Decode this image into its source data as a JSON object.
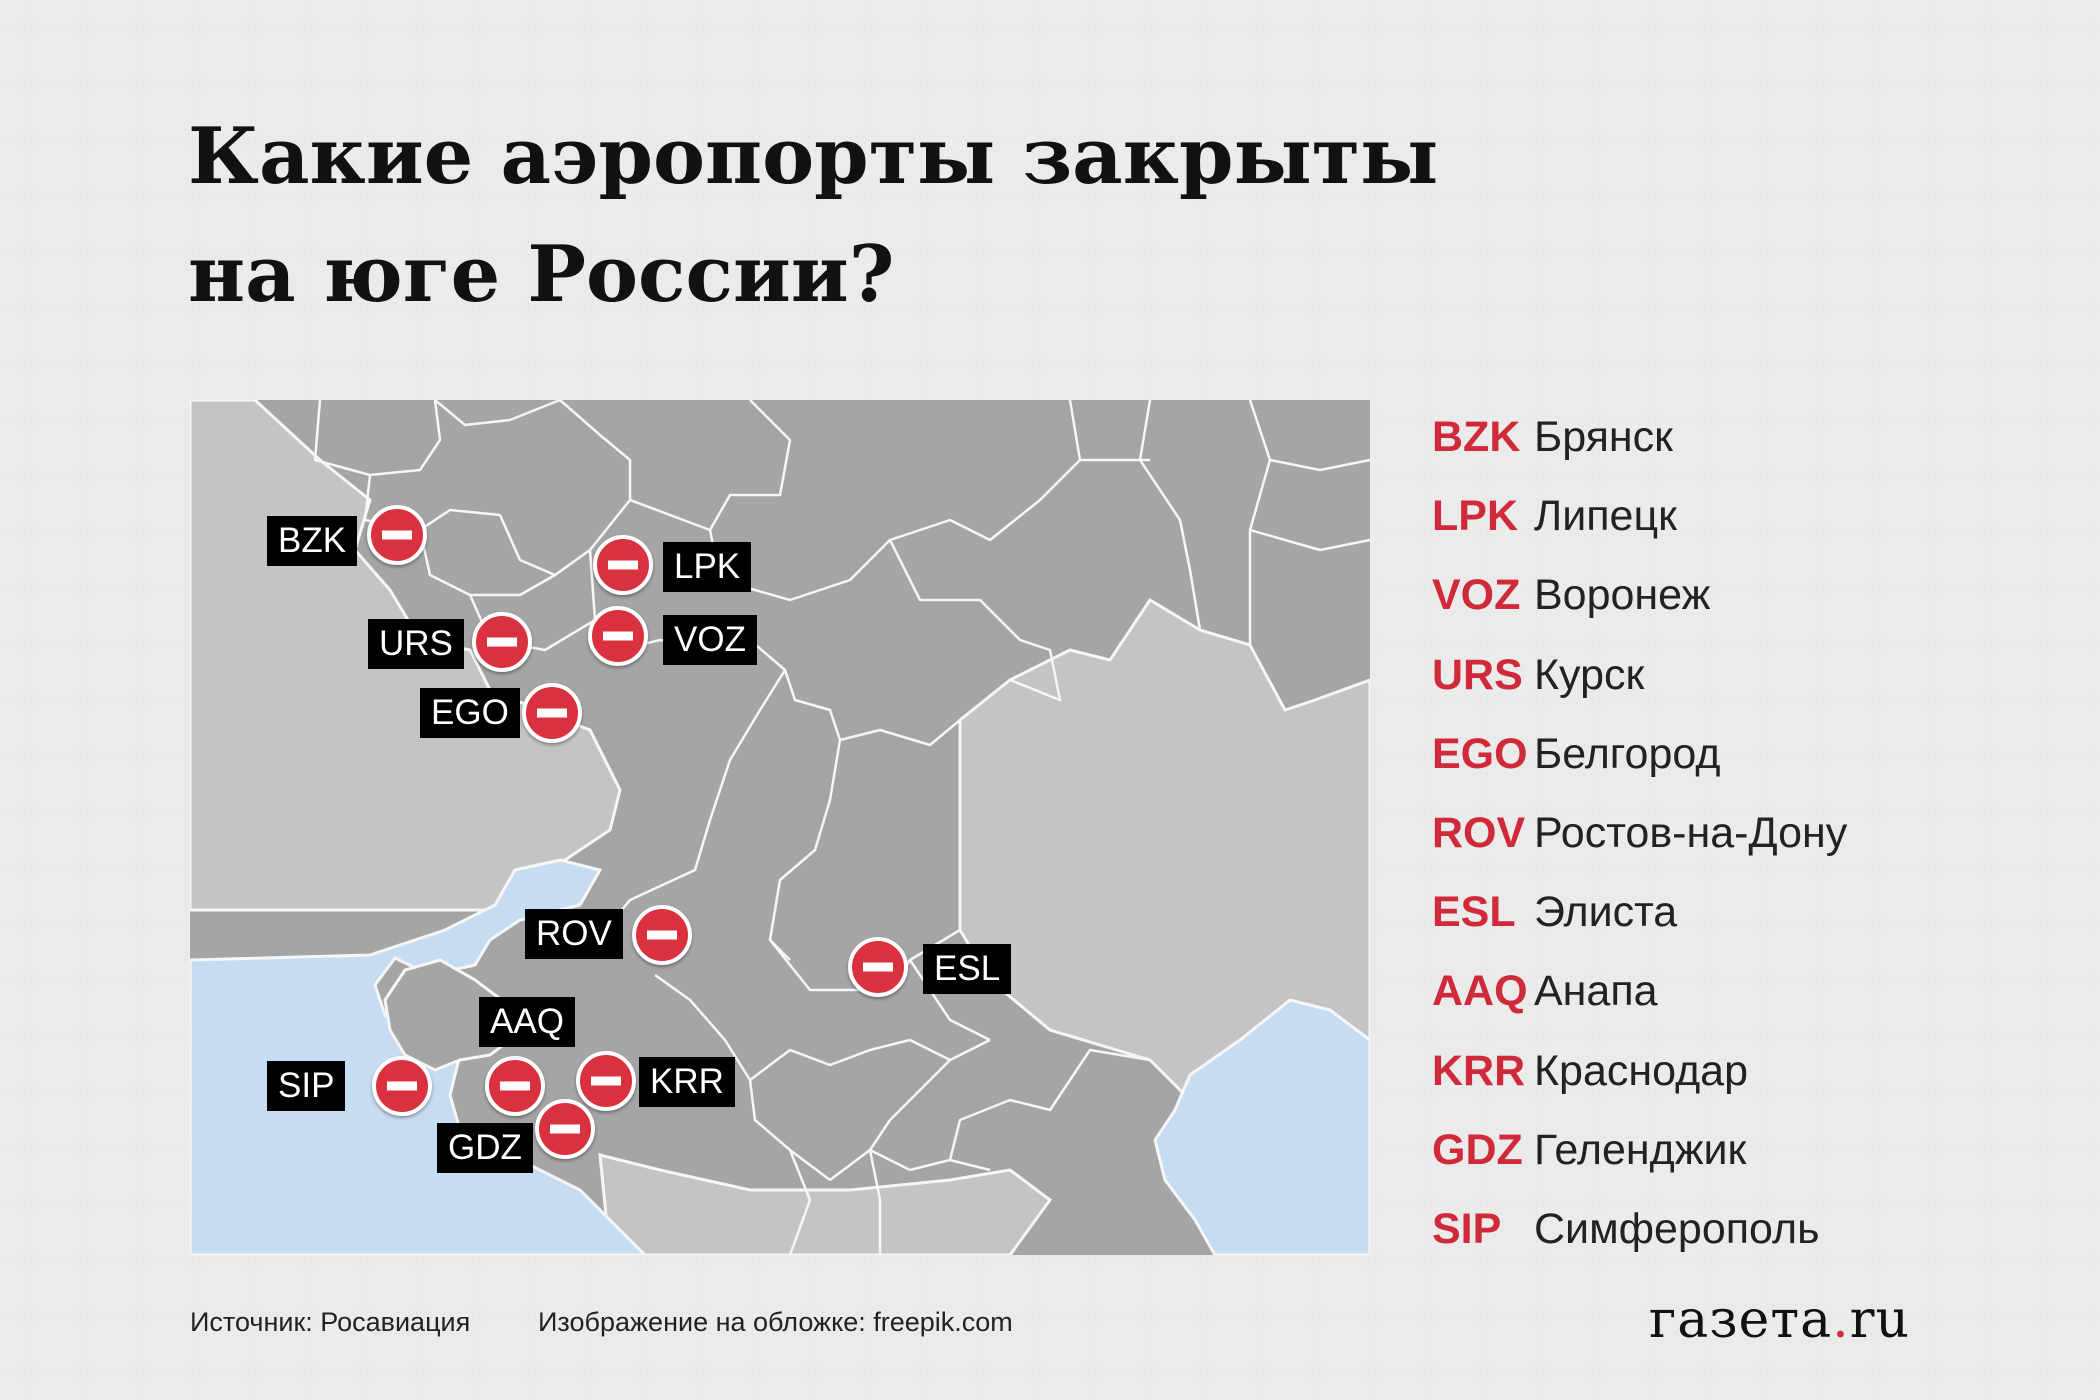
{
  "title_line1": "Какие аэропорты закрыты",
  "title_line2": "на юге России?",
  "airports": [
    {
      "code": "BZK",
      "city": "Брянск"
    },
    {
      "code": "LPK",
      "city": "Липецк"
    },
    {
      "code": "VOZ",
      "city": "Воронеж"
    },
    {
      "code": "URS",
      "city": "Курск"
    },
    {
      "code": "EGO",
      "city": "Белгород"
    },
    {
      "code": "ROV",
      "city": "Ростов-на-Дону"
    },
    {
      "code": "ESL",
      "city": "Элиста"
    },
    {
      "code": "AAQ",
      "city": "Анапа"
    },
    {
      "code": "KRR",
      "city": "Краснодар"
    },
    {
      "code": "GDZ",
      "city": "Геленджик"
    },
    {
      "code": "SIP",
      "city": "Симферополь"
    }
  ],
  "source": "Источник: Росавиация",
  "cover_credit": "Изображение на обложке: freepik.com",
  "logo_part1": "газета",
  "logo_dot": ".",
  "logo_part2": "ru",
  "colors": {
    "accent": "#d02a3a",
    "marker": "#d9323e",
    "russia_land": "#a5a5a5",
    "foreign_land": "#c4c4c4",
    "water": "#c6dcf2"
  },
  "icons": {
    "closed_marker": "no-entry-icon"
  }
}
